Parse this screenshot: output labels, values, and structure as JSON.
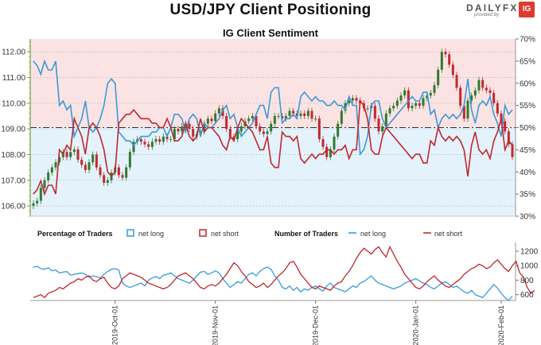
{
  "title": "USD/JPY Client Positioning",
  "brand": {
    "name": "DAILYFX",
    "sub": "provided by",
    "logo": "IG"
  },
  "colors": {
    "candle_up": "#2f7a2f",
    "candle_down": "#c0282f",
    "net_long": "#3a9ad9",
    "net_short": "#c0282f",
    "long_fill": "#e4f2fb",
    "short_fill": "#fbe3e3",
    "axis_green": "#76a13e",
    "grid": "#9aa8b0"
  },
  "chart_data": [
    {
      "type": "line",
      "title": "IG Client Sentiment",
      "left_axis": {
        "range": [
          105.6,
          112.5
        ],
        "ticks": [
          "106.00",
          "107.00",
          "108.00",
          "109.00",
          "110.00",
          "111.00",
          "112.00"
        ]
      },
      "right_axis": {
        "range": [
          30,
          70
        ],
        "ticks": [
          "30%",
          "35%",
          "40%",
          "45%",
          "50%",
          "55%",
          "60%",
          "65%",
          "70%"
        ]
      },
      "neutral_line": 50,
      "series": [
        {
          "name": "net long",
          "kind": "percent",
          "values": [
            65,
            64,
            62,
            65,
            63,
            63,
            65,
            55,
            56,
            54,
            55,
            48,
            50,
            52,
            56,
            50,
            49,
            50,
            52,
            55,
            60,
            61,
            60,
            49,
            48,
            47,
            47,
            46,
            47,
            48,
            48,
            48,
            49,
            49,
            50,
            50,
            48,
            50,
            53,
            53,
            52,
            49,
            52,
            53,
            52,
            48,
            51,
            50,
            50,
            51,
            52,
            54,
            55,
            52,
            53,
            50,
            48,
            49,
            50,
            51,
            53,
            55,
            55,
            52,
            58,
            59,
            59,
            51,
            52,
            52,
            53,
            52,
            57,
            58,
            57,
            56,
            57,
            56,
            56,
            55,
            55,
            56,
            55,
            55,
            54,
            57,
            55,
            55,
            44,
            45,
            48,
            55,
            56,
            56,
            52,
            50,
            51,
            52,
            53,
            54,
            55,
            56,
            57,
            56,
            56,
            58,
            58,
            53,
            54,
            50,
            52,
            53,
            52,
            53,
            52,
            53,
            55,
            61,
            54,
            51,
            55,
            56,
            55,
            57,
            53,
            51,
            48,
            55,
            53,
            54
          ]
        },
        {
          "name": "net short",
          "kind": "percent",
          "values": [
            35,
            36,
            38,
            35,
            37,
            37,
            35,
            45,
            44,
            46,
            45,
            52,
            50,
            48,
            44,
            50,
            51,
            50,
            48,
            45,
            40,
            39,
            40,
            51,
            52,
            53,
            53,
            54,
            53,
            52,
            52,
            52,
            51,
            51,
            50,
            50,
            52,
            50,
            47,
            47,
            48,
            51,
            48,
            47,
            48,
            52,
            49,
            50,
            50,
            49,
            48,
            46,
            45,
            48,
            47,
            50,
            52,
            51,
            50,
            49,
            47,
            45,
            45,
            48,
            42,
            41,
            41,
            49,
            48,
            48,
            47,
            48,
            43,
            42,
            43,
            44,
            43,
            44,
            44,
            45,
            45,
            44,
            45,
            45,
            46,
            43,
            45,
            45,
            56,
            55,
            52,
            45,
            44,
            44,
            48,
            50,
            49,
            48,
            47,
            46,
            45,
            44,
            43,
            44,
            44,
            42,
            42,
            47,
            46,
            50,
            48,
            47,
            48,
            47,
            48,
            47,
            45,
            39,
            46,
            49,
            45,
            44,
            45,
            43,
            47,
            49,
            52,
            45,
            47,
            46
          ]
        },
        {
          "name": "USD/JPY",
          "kind": "candles",
          "close": [
            106.1,
            106.2,
            106.7,
            107.0,
            107.3,
            107.5,
            107.7,
            107.9,
            108.1,
            107.9,
            108.1,
            108.2,
            107.8,
            107.6,
            107.4,
            107.7,
            108.0,
            107.5,
            107.2,
            106.9,
            107.0,
            107.3,
            107.5,
            107.2,
            107.1,
            107.5,
            108.1,
            108.5,
            108.6,
            108.5,
            108.4,
            108.3,
            108.5,
            108.6,
            108.5,
            108.7,
            108.6,
            108.6,
            109.0,
            108.9,
            109.1,
            109.2,
            109.0,
            108.7,
            108.8,
            108.9,
            109.2,
            109.4,
            109.3,
            109.6,
            109.8,
            109.5,
            109.0,
            108.7,
            108.6,
            108.9,
            109.1,
            109.3,
            109.4,
            109.5,
            109.1,
            108.9,
            108.8,
            108.9,
            109.2,
            109.5,
            109.5,
            109.4,
            109.5,
            109.7,
            109.6,
            109.5,
            109.6,
            109.5,
            109.7,
            109.4,
            109.4,
            108.6,
            108.3,
            107.9,
            108.2,
            108.7,
            109.2,
            109.7,
            110.0,
            110.1,
            110.2,
            110.1,
            110.0,
            109.8,
            109.8,
            109.9,
            109.4,
            108.9,
            109.1,
            109.6,
            109.8,
            109.9,
            110.1,
            110.3,
            110.5,
            109.8,
            109.9,
            110.0,
            109.9,
            110.2,
            110.3,
            110.4,
            110.7,
            111.3,
            112.0,
            111.9,
            111.5,
            111.1,
            110.6,
            109.9,
            109.4,
            110.1,
            110.3,
            110.5,
            110.9,
            110.6,
            110.5,
            110.4,
            110.0,
            109.6,
            109.3,
            108.9,
            108.4,
            107.9
          ]
        }
      ]
    },
    {
      "type": "line",
      "legend": {
        "percentage_label": "Percentage of Traders",
        "number_label": "Number of Traders"
      },
      "right_axis": {
        "range": [
          520,
          1320
        ],
        "ticks": [
          "600",
          "800",
          "1000",
          "1200"
        ]
      },
      "x_ticks": [
        "2019-Oct-01",
        "2019-Nov-01",
        "2019-Dec-01",
        "2020-Jan-01",
        "2020-Feb-01"
      ],
      "series": [
        {
          "name": "net long",
          "values": [
            980,
            990,
            960,
            950,
            970,
            930,
            940,
            900,
            910,
            920,
            870,
            880,
            890,
            900,
            880,
            840,
            860,
            850,
            830,
            880,
            920,
            950,
            960,
            940,
            760,
            720,
            700,
            720,
            740,
            760,
            720,
            800,
            830,
            850,
            820,
            870,
            880,
            900,
            860,
            820,
            800,
            780,
            760,
            800,
            860,
            910,
            920,
            880,
            900,
            930,
            900,
            820,
            760,
            700,
            740,
            780,
            760,
            820,
            880,
            900,
            860,
            920,
            960,
            980,
            950,
            860,
            800,
            700,
            680,
            720,
            660,
            700,
            640,
            680,
            660,
            700,
            720,
            680,
            650,
            720,
            760,
            700,
            680,
            660,
            640,
            680,
            720,
            700,
            760,
            780,
            820,
            860,
            800,
            760,
            740,
            720,
            700,
            680,
            700,
            720,
            760,
            780,
            800,
            820,
            790,
            760,
            740,
            700,
            680,
            720,
            760,
            780,
            740,
            700,
            720,
            680,
            640,
            620,
            660,
            600,
            580,
            560,
            620,
            680,
            740,
            690,
            620,
            560,
            520,
            580
          ]
        },
        {
          "name": "net short",
          "values": [
            560,
            580,
            600,
            560,
            620,
            640,
            660,
            700,
            680,
            720,
            760,
            780,
            820,
            800,
            840,
            860,
            800,
            780,
            820,
            840,
            760,
            700,
            680,
            720,
            820,
            860,
            900,
            880,
            860,
            840,
            800,
            760,
            740,
            720,
            700,
            680,
            700,
            740,
            800,
            860,
            880,
            900,
            860,
            820,
            760,
            700,
            680,
            720,
            740,
            720,
            760,
            820,
            880,
            960,
            1040,
            1000,
            920,
            860,
            780,
            740,
            700,
            720,
            760,
            700,
            740,
            800,
            860,
            900,
            960,
            1040,
            1060,
            980,
            880,
            820,
            760,
            700,
            680,
            720,
            700,
            680,
            660,
            720,
            760,
            780,
            860,
            920,
            1000,
            1100,
            1180,
            1240,
            1200,
            1160,
            1220,
            1260,
            1180,
            1120,
            1260,
            1160,
            1060,
            980,
            880,
            820,
            760,
            700,
            680,
            720,
            780,
            820,
            860,
            800,
            760,
            720,
            700,
            740,
            780,
            820,
            880,
            920,
            960,
            980,
            1020,
            1000,
            960,
            980,
            1040,
            1080,
            1020,
            960,
            920,
            1000,
            1060,
            900,
            840,
            700,
            620,
            660
          ]
        }
      ]
    }
  ]
}
